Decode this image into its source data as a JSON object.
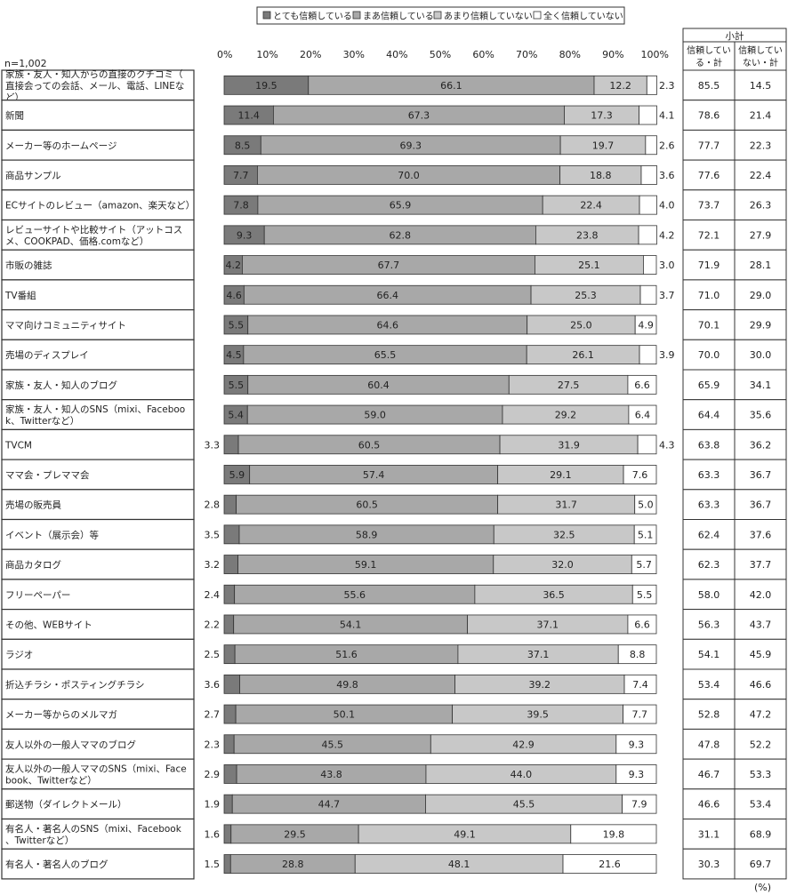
{
  "chart_data": {
    "type": "bar",
    "stacked": true,
    "orientation": "horizontal",
    "sample_note": "n=1,002",
    "unit_note": "(%)",
    "legend": {
      "placement": "top-center",
      "entries": [
        "とても信頼している",
        "まあ信頼している",
        "あまり信頼していない",
        "全く信頼していない"
      ]
    },
    "xaxis": {
      "range": [
        0,
        100
      ],
      "ticks": [
        "0%",
        "10%",
        "20%",
        "30%",
        "40%",
        "50%",
        "60%",
        "70%",
        "80%",
        "90%",
        "100%"
      ]
    },
    "colors": [
      "#7a7a7a",
      "#a8a8a8",
      "#c8c8c8",
      "#ffffff"
    ],
    "categories": [
      "家族・友人・知人からの直接のクチコミ（直接会っての会話、メール、電話、LINEなど）",
      "新聞",
      "メーカー等のホームページ",
      "商品サンプル",
      "ECサイトのレビュー（amazon、楽天など）",
      "レビューサイトや比較サイト（アットコスメ、COOKPAD、価格.comなど）",
      "市販の雑誌",
      "TV番組",
      "ママ向けコミュニティサイト",
      "売場のディスプレイ",
      "家族・友人・知人のブログ",
      "家族・友人・知人のSNS（mixi、Facebook、Twitterなど）",
      "TVCM",
      "ママ会・プレママ会",
      "売場の販売員",
      "イベント（展示会）等",
      "商品カタログ",
      "フリーペーパー",
      "その他、WEBサイト",
      "ラジオ",
      "折込チラシ・ポスティングチラシ",
      "メーカー等からのメルマガ",
      "友人以外の一般人ママのブログ",
      "友人以外の一般人ママのSNS（mixi、Facebook、Twitterなど）",
      "郵送物（ダイレクトメール）",
      "有名人・著名人のSNS（mixi、Facebook、Twitterなど）",
      "有名人・著名人のブログ"
    ],
    "series": [
      {
        "name": "とても信頼している",
        "values": [
          19.5,
          11.4,
          8.5,
          7.7,
          7.8,
          9.3,
          4.2,
          4.6,
          5.5,
          4.5,
          5.5,
          5.4,
          3.3,
          5.9,
          2.8,
          3.5,
          3.2,
          2.4,
          2.2,
          2.5,
          3.6,
          2.7,
          2.3,
          2.9,
          1.9,
          1.6,
          1.5
        ]
      },
      {
        "name": "まあ信頼している",
        "values": [
          66.1,
          67.3,
          69.3,
          70.0,
          65.9,
          62.8,
          67.7,
          66.4,
          64.6,
          65.5,
          60.4,
          59.0,
          60.5,
          57.4,
          60.5,
          58.9,
          59.1,
          55.6,
          54.1,
          51.6,
          49.8,
          50.1,
          45.5,
          43.8,
          44.7,
          29.5,
          28.8
        ]
      },
      {
        "name": "あまり信頼していない",
        "values": [
          12.2,
          17.3,
          19.7,
          18.8,
          22.4,
          23.8,
          25.1,
          25.3,
          25.0,
          26.1,
          27.5,
          29.2,
          31.9,
          29.1,
          31.7,
          32.5,
          32.0,
          36.5,
          37.1,
          37.1,
          39.2,
          39.5,
          42.9,
          44.0,
          45.5,
          49.1,
          48.1
        ]
      },
      {
        "name": "全く信頼していない",
        "values": [
          2.3,
          4.1,
          2.6,
          3.6,
          4.0,
          4.2,
          3.0,
          3.7,
          4.9,
          3.9,
          6.6,
          6.4,
          4.3,
          7.6,
          5.0,
          5.1,
          5.7,
          5.5,
          6.6,
          8.8,
          7.4,
          7.7,
          9.3,
          9.3,
          7.9,
          19.8,
          21.6
        ]
      }
    ],
    "subtotal": {
      "header": "小計",
      "columns": [
        "信頼している・計",
        "信頼していない・計"
      ],
      "trust": [
        85.5,
        78.6,
        77.7,
        77.6,
        73.7,
        72.1,
        71.9,
        71.0,
        70.1,
        70.0,
        65.9,
        64.4,
        63.8,
        63.3,
        63.3,
        62.4,
        62.3,
        58.0,
        56.3,
        54.1,
        53.4,
        52.8,
        47.8,
        46.7,
        46.6,
        31.1,
        30.3
      ],
      "distrust": [
        14.5,
        21.4,
        22.3,
        22.4,
        26.3,
        27.9,
        28.1,
        29.0,
        29.9,
        30.0,
        34.1,
        35.6,
        36.2,
        36.7,
        36.7,
        37.6,
        37.7,
        42.0,
        43.7,
        45.9,
        46.6,
        47.2,
        52.2,
        53.3,
        53.4,
        68.9,
        69.7
      ]
    }
  }
}
